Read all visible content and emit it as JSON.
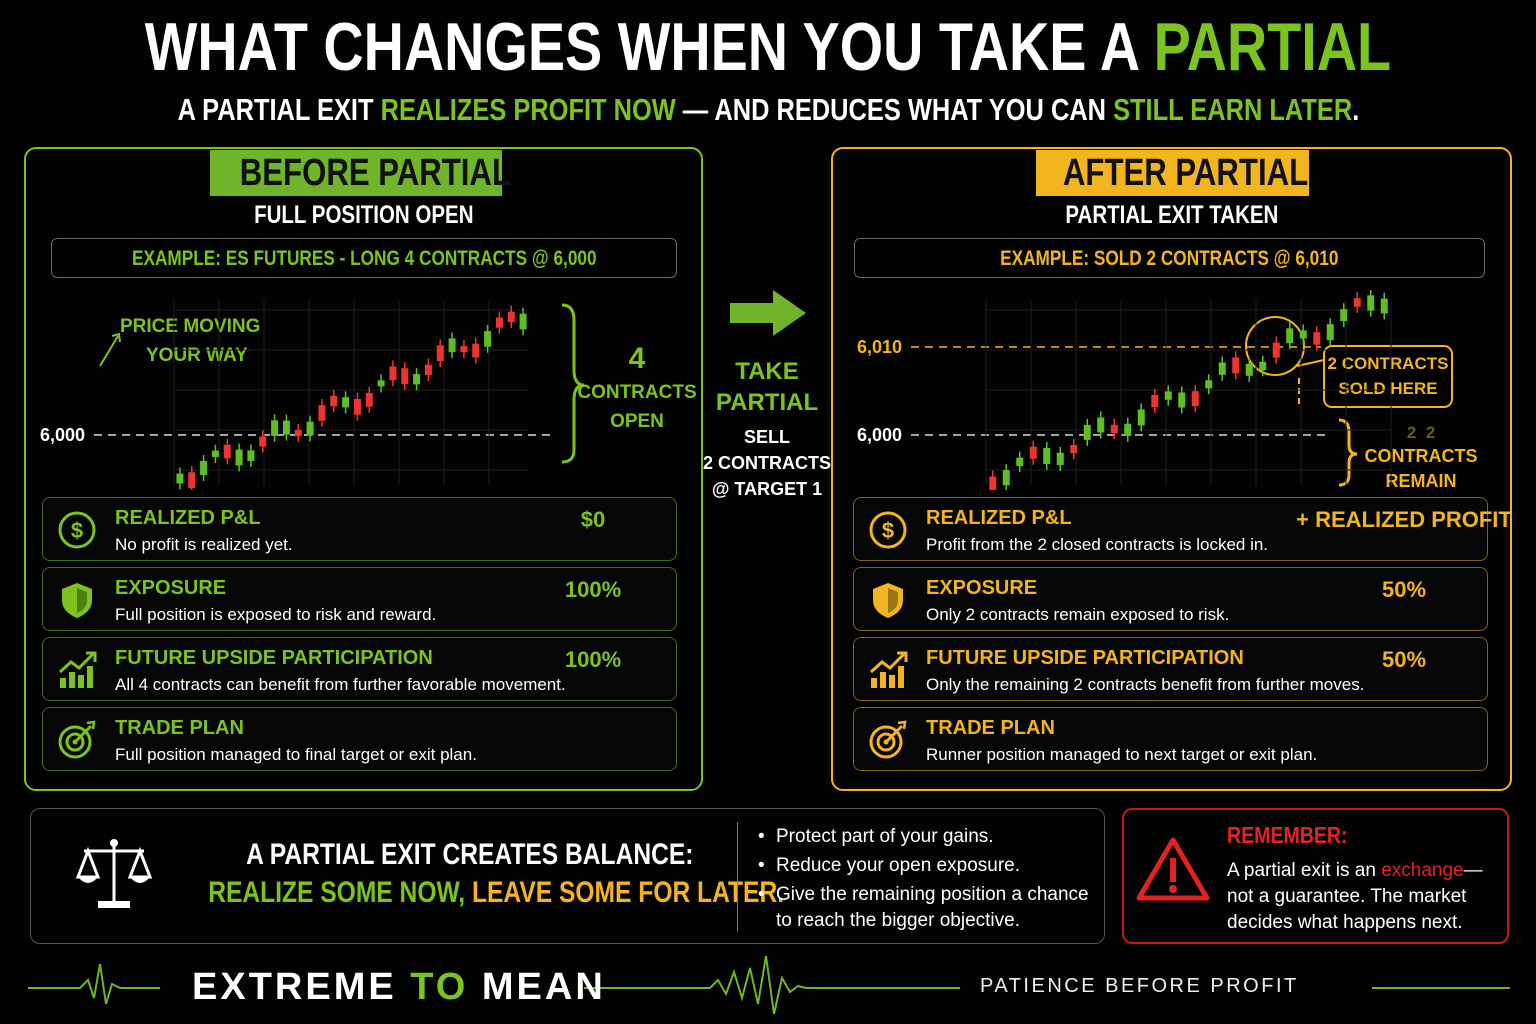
{
  "header": {
    "title": [
      "WHAT CHANGES WHEN YOU TAKE A ",
      "PARTIAL"
    ],
    "subtitle": [
      "A PARTIAL EXIT ",
      "REALIZES PROFIT NOW",
      " — AND REDUCES WHAT YOU CAN ",
      "STILL EARN LATER",
      "."
    ]
  },
  "before": {
    "badge": "BEFORE PARTIAL",
    "heading": "FULL POSITION OPEN",
    "example": "EXAMPLE: ES FUTURES - LONG 4 CONTRACTS @ 6,000",
    "annotation": [
      "PRICE MOVING",
      "YOUR WAY"
    ],
    "price_labels": [
      "6,000"
    ],
    "brace_label": [
      "4",
      "CONTRACTS",
      "OPEN"
    ],
    "rows": [
      {
        "label": "REALIZED P&L",
        "description": "No profit is realized yet.",
        "value": "$0"
      },
      {
        "label": "EXPOSURE",
        "description": "Full position is exposed to risk and reward.",
        "value": "100%"
      },
      {
        "label": "FUTURE UPSIDE PARTICIPATION",
        "description": "All 4 contracts can benefit from further favorable movement.",
        "value": "100%"
      },
      {
        "label": "TRADE PLAN",
        "description": "Full position managed to final target or exit plan."
      }
    ]
  },
  "middle": {
    "action": [
      "TAKE",
      "PARTIAL"
    ],
    "detail": [
      "SELL",
      "2 CONTRACTS",
      "@ TARGET 1"
    ]
  },
  "after": {
    "badge": "AFTER PARTIAL",
    "heading": "PARTIAL EXIT TAKEN",
    "example": "EXAMPLE: SOLD 2 CONTRACTS @ 6,010",
    "price_labels": [
      "6,010",
      "6,000"
    ],
    "callout": [
      "2 CONTRACTS",
      "SOLD HERE"
    ],
    "brace_label": [
      "2  2",
      "CONTRACTS",
      "REMAIN"
    ],
    "rows": [
      {
        "label": "REALIZED P&L",
        "description": "Profit from the 2 closed contracts is locked in.",
        "value": "+ REALIZED PROFIT"
      },
      {
        "label": "EXPOSURE",
        "description": "Only 2 contracts remain exposed to risk.",
        "value": "50%"
      },
      {
        "label": "FUTURE UPSIDE PARTICIPATION",
        "description": "Only the remaining 2 contracts benefit from further moves.",
        "value": "50%"
      },
      {
        "label": "TRADE PLAN",
        "description": "Runner position managed to next target or exit plan."
      }
    ]
  },
  "summary": {
    "heading": "A PARTIAL EXIT CREATES BALANCE:",
    "tagline": [
      "REALIZE SOME NOW, ",
      "LEAVE SOME FOR LATER."
    ],
    "bullets": [
      "Protect part of your gains.",
      "Reduce your open exposure.",
      "Give the remaining position a chance to reach the bigger objective."
    ]
  },
  "remember": {
    "title": "REMEMBER:",
    "text": [
      "A partial exit is an ",
      "exchange",
      "—not a guarantee. The market decides what happens next."
    ]
  },
  "footer": {
    "brand": [
      "EXTREME ",
      "TO",
      " MEAN"
    ],
    "slogan": "PATIENCE BEFORE PROFIT"
  }
}
